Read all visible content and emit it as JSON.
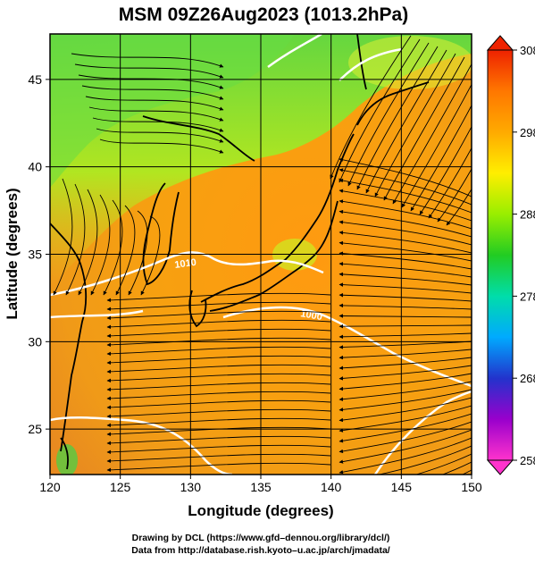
{
  "title": "MSM 09Z26Aug2023 (1013.2hPa)",
  "xaxis": {
    "label": "Longitude (degrees)",
    "range": [
      120,
      150
    ],
    "ticks": [
      120,
      125,
      130,
      135,
      140,
      145,
      150
    ]
  },
  "yaxis": {
    "label": "Latitude  (degrees)",
    "range": [
      22.4,
      47.6
    ],
    "ticks": [
      25,
      30,
      35,
      40,
      45
    ]
  },
  "colorbar": {
    "range": [
      258,
      308
    ],
    "ticks": [
      258,
      268,
      278,
      288,
      298,
      308
    ],
    "colors": [
      "#ff33cc",
      "#9900cc",
      "#2233cc",
      "#00aaff",
      "#00ddaa",
      "#22cc22",
      "#99ee00",
      "#ffee00",
      "#ffaa00",
      "#ff7700",
      "#ee2200"
    ]
  },
  "contour_labels": [
    "1010",
    "1000"
  ],
  "credits": {
    "line1": "Drawing by DCL (https://www.gfd–dennou.org/library/dcl/)",
    "line2": "Data from http://database.rish.kyoto–u.ac.jp/arch/jmadata/"
  }
}
